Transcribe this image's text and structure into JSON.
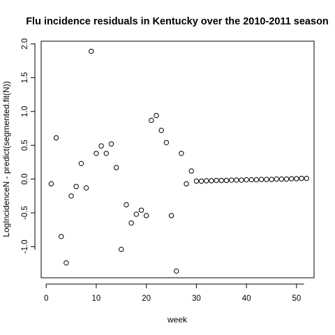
{
  "chart_data": {
    "type": "scatter",
    "title": "Flu incidence residuals in Kentucky over the 2010-2011 season",
    "xlabel": "week",
    "ylabel": "LogIncidenceN - predict(segmented.fit(N))",
    "xlim": [
      -1.0,
      53.5
    ],
    "ylim": [
      -1.46,
      2.04
    ],
    "x_ticks": [
      0,
      10,
      20,
      30,
      40,
      50
    ],
    "y_ticks": [
      -1.0,
      -0.5,
      0.0,
      0.5,
      1.0,
      1.5,
      2.0
    ],
    "y_tick_labels": [
      "-1.0",
      "-0.5",
      "0.0",
      "0.5",
      "1.0",
      "1.5",
      "2.0"
    ],
    "marker": "open-circle",
    "grid": false,
    "points": [
      {
        "x": 1,
        "y": -0.07
      },
      {
        "x": 2,
        "y": 0.61
      },
      {
        "x": 3,
        "y": -0.85
      },
      {
        "x": 4,
        "y": -1.24
      },
      {
        "x": 5,
        "y": -0.25
      },
      {
        "x": 6,
        "y": -0.11
      },
      {
        "x": 7,
        "y": 0.23
      },
      {
        "x": 8,
        "y": -0.13
      },
      {
        "x": 9,
        "y": 1.89
      },
      {
        "x": 10,
        "y": 0.38
      },
      {
        "x": 11,
        "y": 0.49
      },
      {
        "x": 12,
        "y": 0.38
      },
      {
        "x": 13,
        "y": 0.52
      },
      {
        "x": 14,
        "y": 0.17
      },
      {
        "x": 15,
        "y": -1.04
      },
      {
        "x": 16,
        "y": -0.38
      },
      {
        "x": 17,
        "y": -0.65
      },
      {
        "x": 18,
        "y": -0.52
      },
      {
        "x": 19,
        "y": -0.46
      },
      {
        "x": 20,
        "y": -0.54
      },
      {
        "x": 21,
        "y": 0.87
      },
      {
        "x": 22,
        "y": 0.94
      },
      {
        "x": 23,
        "y": 0.72
      },
      {
        "x": 24,
        "y": 0.54
      },
      {
        "x": 25,
        "y": -0.54
      },
      {
        "x": 26,
        "y": -1.36
      },
      {
        "x": 27,
        "y": 0.38
      },
      {
        "x": 28,
        "y": -0.07
      },
      {
        "x": 29,
        "y": 0.12
      },
      {
        "x": 30,
        "y": -0.03
      },
      {
        "x": 31,
        "y": -0.03
      },
      {
        "x": 32,
        "y": -0.025
      },
      {
        "x": 33,
        "y": -0.025
      },
      {
        "x": 34,
        "y": -0.02
      },
      {
        "x": 35,
        "y": -0.02
      },
      {
        "x": 36,
        "y": -0.02
      },
      {
        "x": 37,
        "y": -0.015
      },
      {
        "x": 38,
        "y": -0.015
      },
      {
        "x": 39,
        "y": -0.015
      },
      {
        "x": 40,
        "y": -0.01
      },
      {
        "x": 41,
        "y": -0.01
      },
      {
        "x": 42,
        "y": -0.01
      },
      {
        "x": 43,
        "y": -0.005
      },
      {
        "x": 44,
        "y": -0.005
      },
      {
        "x": 45,
        "y": -0.005
      },
      {
        "x": 46,
        "y": 0.0
      },
      {
        "x": 47,
        "y": 0.0
      },
      {
        "x": 48,
        "y": 0.0
      },
      {
        "x": 49,
        "y": 0.005
      },
      {
        "x": 50,
        "y": 0.005
      },
      {
        "x": 51,
        "y": 0.01
      },
      {
        "x": 52,
        "y": 0.01
      }
    ]
  }
}
